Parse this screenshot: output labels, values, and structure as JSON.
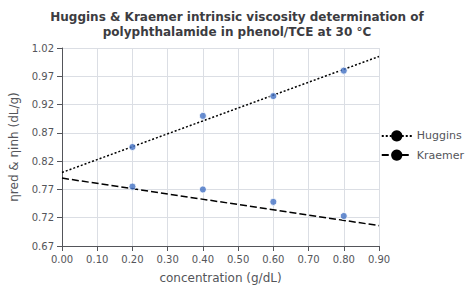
{
  "chart_data": {
    "type": "line",
    "title": "Huggins & Kraemer intrinsic viscosity determination of\npolyphthalamide in phenol/TCE at 30 °C",
    "x_label": "concentration (g/dL)",
    "y_label": "ηred & ηinh (dL/g)",
    "xlim": [
      0.0,
      0.9
    ],
    "ylim": [
      0.67,
      1.02
    ],
    "xticks": [
      {
        "value": 0.0,
        "label": "0.00"
      },
      {
        "value": 0.1,
        "label": "0.10"
      },
      {
        "value": 0.2,
        "label": "0.20"
      },
      {
        "value": 0.3,
        "label": "0.30"
      },
      {
        "value": 0.4,
        "label": "0.40"
      },
      {
        "value": 0.5,
        "label": "0.50"
      },
      {
        "value": 0.6,
        "label": "0.60"
      },
      {
        "value": 0.7,
        "label": "0.70"
      },
      {
        "value": 0.8,
        "label": "0.80"
      },
      {
        "value": 0.9,
        "label": "0.90"
      }
    ],
    "yticks": [
      0.67,
      0.72,
      0.77,
      0.82,
      0.87,
      0.92,
      0.97,
      1.02
    ],
    "grid": true,
    "legend": "right",
    "series": [
      {
        "name": "Huggins",
        "type": "line",
        "color": "black",
        "line_style": "dotted",
        "x": [
          0.0,
          0.9
        ],
        "values": [
          0.8,
          1.005
        ]
      },
      {
        "name": "Kraemer",
        "type": "line",
        "color": "black",
        "line_style": "dashed",
        "x": [
          0.0,
          0.9
        ],
        "values": [
          0.79,
          0.706
        ]
      },
      {
        "type": "scatter",
        "color": "#4472C4",
        "marker": "circle",
        "x": [
          0.2,
          0.4,
          0.6,
          0.8
        ],
        "values": [
          0.845,
          0.9,
          0.935,
          0.98
        ]
      },
      {
        "type": "scatter",
        "color": "#4472C4",
        "marker": "circle",
        "x": [
          0.2,
          0.4,
          0.6,
          0.8
        ],
        "values": [
          0.775,
          0.77,
          0.748,
          0.723
        ]
      }
    ]
  }
}
